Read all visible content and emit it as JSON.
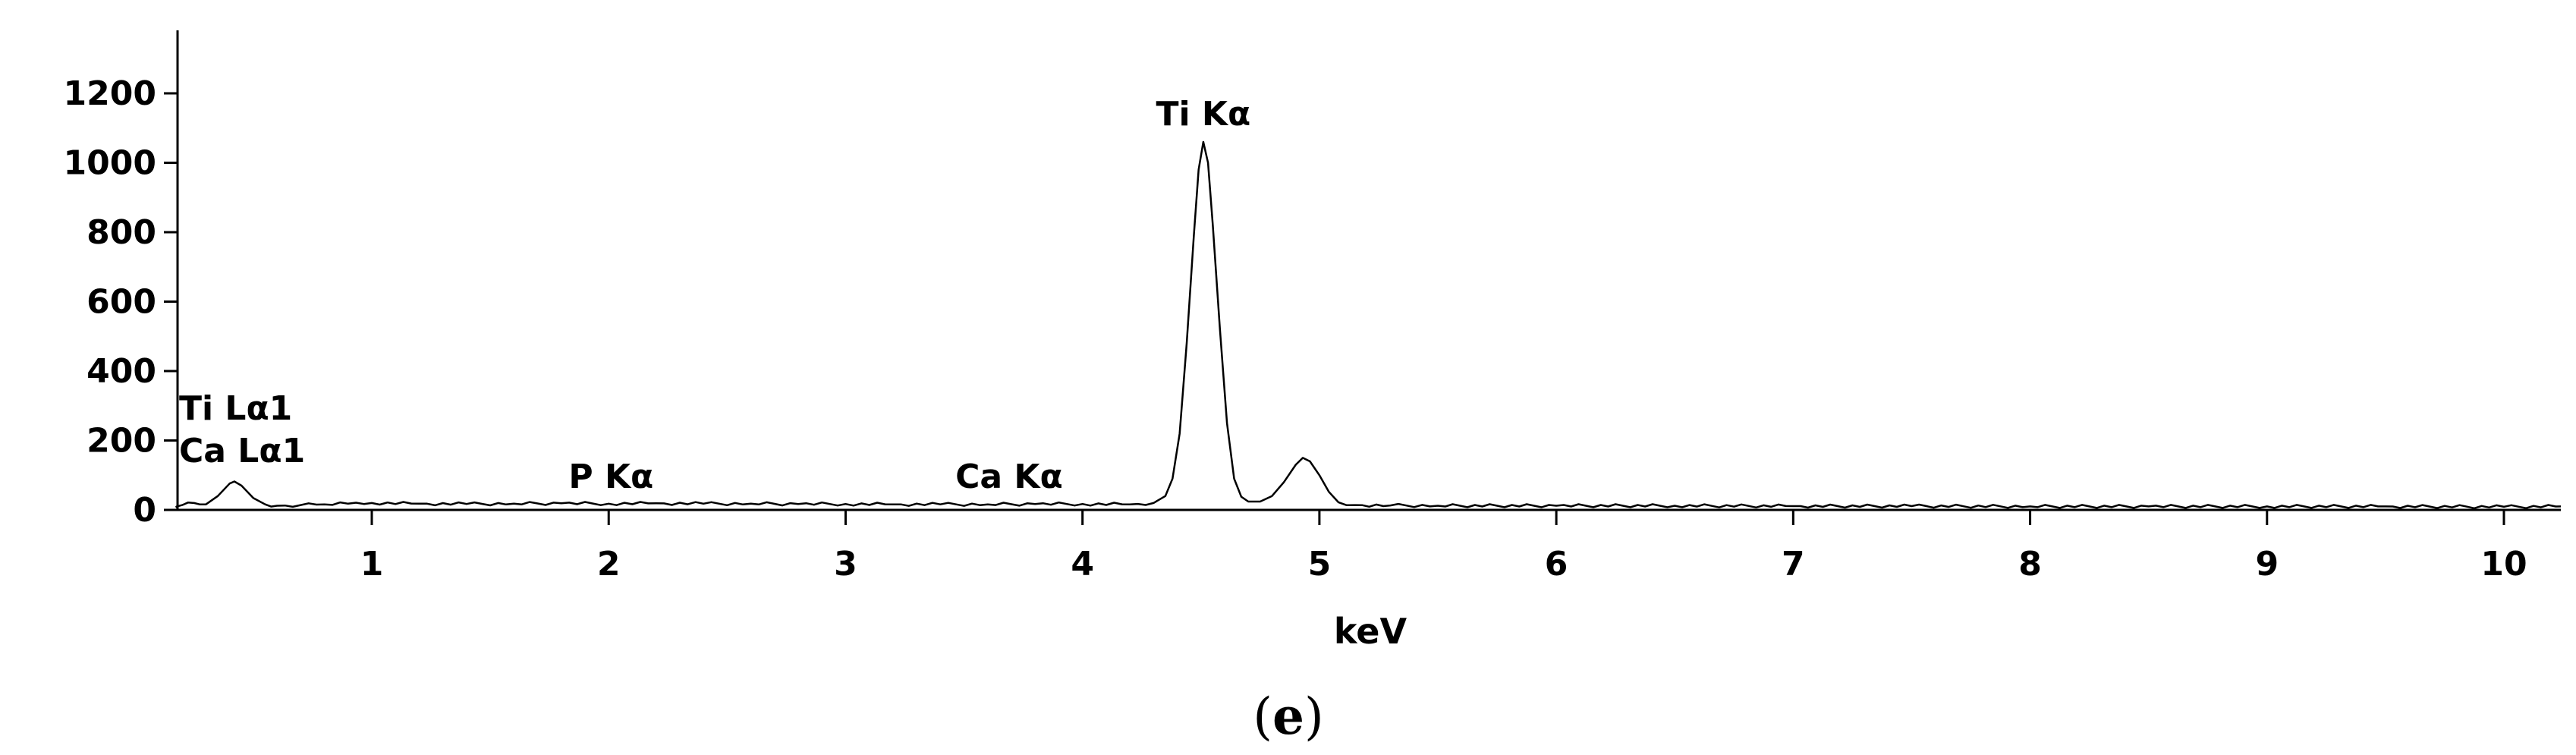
{
  "chart_data": {
    "type": "line",
    "xlabel": "keV",
    "ylabel": "",
    "xlim": [
      0.15,
      10.25
    ],
    "ylim": [
      0,
      1300
    ],
    "xticks": [
      "1",
      "2",
      "3",
      "4",
      "5",
      "6",
      "7",
      "8",
      "9",
      "10"
    ],
    "yticks": [
      "0",
      "200",
      "400",
      "600",
      "800",
      "1000",
      "1200"
    ],
    "grid": false,
    "panel_label": {
      "open": "(",
      "letter": "e",
      "close": ")"
    },
    "annotations": [
      {
        "text": "Ti Kα",
        "x": 4.51,
        "y": 1060
      },
      {
        "text": "Ti Lα1",
        "x": 0.42,
        "y": 260
      },
      {
        "text": "Ca Lα1",
        "x": 0.42,
        "y": 90
      },
      {
        "text": "P Kα",
        "x": 2.01,
        "y": 20
      },
      {
        "text": "Ca Kα",
        "x": 3.69,
        "y": 20
      }
    ],
    "series": [
      {
        "values": [
          [
            0.15,
            5
          ],
          [
            0.2,
            14
          ],
          [
            0.25,
            20
          ],
          [
            0.3,
            16
          ],
          [
            0.35,
            40
          ],
          [
            0.4,
            76
          ],
          [
            0.42,
            82
          ],
          [
            0.45,
            70
          ],
          [
            0.5,
            34
          ],
          [
            0.55,
            16
          ],
          [
            0.6,
            12
          ],
          [
            0.7,
            14
          ],
          [
            0.8,
            16
          ],
          [
            0.9,
            18
          ],
          [
            1.0,
            20
          ],
          [
            1.2,
            18
          ],
          [
            1.4,
            17
          ],
          [
            1.6,
            18
          ],
          [
            1.8,
            19
          ],
          [
            2.0,
            18
          ],
          [
            2.2,
            19
          ],
          [
            2.4,
            18
          ],
          [
            2.6,
            18
          ],
          [
            2.8,
            17
          ],
          [
            3.0,
            17
          ],
          [
            3.2,
            16
          ],
          [
            3.4,
            16
          ],
          [
            3.6,
            16
          ],
          [
            3.8,
            17
          ],
          [
            4.0,
            17
          ],
          [
            4.2,
            16
          ],
          [
            4.3,
            20
          ],
          [
            4.35,
            40
          ],
          [
            4.38,
            90
          ],
          [
            4.41,
            220
          ],
          [
            4.44,
            480
          ],
          [
            4.47,
            790
          ],
          [
            4.49,
            980
          ],
          [
            4.51,
            1060
          ],
          [
            4.53,
            1000
          ],
          [
            4.55,
            820
          ],
          [
            4.58,
            520
          ],
          [
            4.61,
            250
          ],
          [
            4.64,
            90
          ],
          [
            4.67,
            38
          ],
          [
            4.7,
            24
          ],
          [
            4.75,
            24
          ],
          [
            4.8,
            40
          ],
          [
            4.85,
            80
          ],
          [
            4.9,
            130
          ],
          [
            4.93,
            150
          ],
          [
            4.96,
            140
          ],
          [
            5.0,
            100
          ],
          [
            5.04,
            52
          ],
          [
            5.08,
            22
          ],
          [
            5.15,
            14
          ],
          [
            5.3,
            13
          ],
          [
            5.5,
            12
          ],
          [
            6.0,
            12
          ],
          [
            6.5,
            12
          ],
          [
            7.0,
            11
          ],
          [
            7.5,
            11
          ],
          [
            8.0,
            10
          ],
          [
            8.5,
            10
          ],
          [
            9.0,
            10
          ],
          [
            9.5,
            10
          ],
          [
            10.0,
            9
          ],
          [
            10.25,
            10
          ]
        ]
      }
    ]
  }
}
